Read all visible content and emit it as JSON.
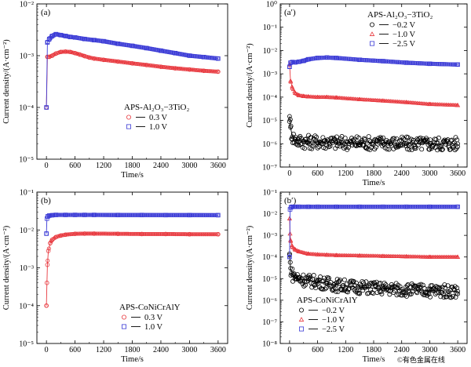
{
  "watermark": "©有色金属在线",
  "colors": {
    "red": "#e8393f",
    "blue": "#3b3bd6",
    "black": "#000000",
    "gray": "#555555"
  },
  "chart_data": [
    {
      "id": "a",
      "panel_label": "(a)",
      "type": "line",
      "xlabel": "Time/s",
      "ylabel": "Current density/(A·cm⁻²)",
      "xlim": [
        -200,
        3800
      ],
      "x_ticks": [
        0,
        600,
        1200,
        1800,
        2400,
        3000,
        3600
      ],
      "ylog": true,
      "ylim_exp": [
        -5,
        -2
      ],
      "y_tick_labels": [
        "10⁻⁵",
        "10⁻⁴",
        "10⁻³",
        "10⁻²"
      ],
      "legend_title": "APS-Al₂O₃−3TiO₂",
      "legend_pos": "center",
      "series": [
        {
          "name": "0.3 V",
          "marker": "circle",
          "color": "#e8393f",
          "x": [
            0,
            20,
            60,
            120,
            200,
            300,
            400,
            500,
            600,
            700,
            800,
            900,
            1000,
            1200,
            1500,
            1800,
            2100,
            2400,
            2700,
            3000,
            3300,
            3600
          ],
          "y": [
            0.0001,
            0.00095,
            0.00095,
            0.001,
            0.0011,
            0.00118,
            0.0012,
            0.00118,
            0.00112,
            0.00105,
            0.00098,
            0.00092,
            0.00088,
            0.00083,
            0.00077,
            0.00071,
            0.00066,
            0.00061,
            0.00057,
            0.00054,
            0.00051,
            0.00049
          ]
        },
        {
          "name": "1.0 V",
          "marker": "square",
          "color": "#3b3bd6",
          "x": [
            0,
            20,
            60,
            120,
            200,
            300,
            400,
            500,
            600,
            800,
            1000,
            1200,
            1500,
            1800,
            2100,
            2400,
            2700,
            3000,
            3300,
            3600
          ],
          "y": [
            0.0001,
            0.0018,
            0.0021,
            0.0024,
            0.0026,
            0.0025,
            0.0024,
            0.0023,
            0.00225,
            0.0021,
            0.002,
            0.0019,
            0.0017,
            0.00155,
            0.0014,
            0.00125,
            0.00112,
            0.001,
            0.00094,
            0.00088
          ]
        }
      ]
    },
    {
      "id": "a2",
      "panel_label": "(a′)",
      "type": "line",
      "xlabel": "Time/s",
      "ylabel": "Current density/(A·cm⁻²)",
      "xlim": [
        -200,
        3800
      ],
      "x_ticks": [
        0,
        600,
        1200,
        1800,
        2400,
        3000,
        3600
      ],
      "ylog": true,
      "ylim_exp": [
        -7,
        0
      ],
      "y_tick_labels": [
        "10⁻⁷",
        "10⁻⁶",
        "10⁻⁵",
        "10⁻⁴",
        "10⁻³",
        "10⁻²",
        "10⁻¹",
        "10⁰"
      ],
      "legend_title": "APS-Al₂O₃−3TiO₂",
      "legend_pos": "top-right",
      "series": [
        {
          "name": "−0.2 V",
          "marker": "circle",
          "color": "#000000",
          "noisy": true,
          "spread": [
            4e-07,
            3e-06
          ],
          "x": [
            0,
            20,
            60,
            120,
            200,
            400,
            600,
            800,
            1000,
            1500,
            2000,
            2500,
            3000,
            3600
          ],
          "y": [
            1.5e-05,
            5e-06,
            2e-06,
            1.5e-06,
            1.3e-06,
            1.2e-06,
            1.2e-06,
            1.2e-06,
            1.1e-06,
            1.1e-06,
            1.1e-06,
            1e-06,
            1e-06,
            1e-06
          ]
        },
        {
          "name": "−1.0 V",
          "marker": "triangle",
          "color": "#e8393f",
          "x": [
            0,
            20,
            60,
            120,
            200,
            300,
            400,
            600,
            800,
            1000,
            1500,
            2000,
            2500,
            3000,
            3600
          ],
          "y": [
            0.0025,
            0.0005,
            0.00025,
            0.00015,
            0.00012,
            0.00011,
            0.000105,
            0.0001,
            0.0001,
            9.5e-05,
            8e-05,
            7e-05,
            6e-05,
            5e-05,
            4.5e-05
          ]
        },
        {
          "name": "−2.5 V",
          "marker": "square",
          "color": "#3b3bd6",
          "x": [
            0,
            20,
            60,
            120,
            200,
            300,
            400,
            600,
            800,
            1000,
            1500,
            2000,
            2500,
            3000,
            3600
          ],
          "y": [
            0.002,
            0.003,
            0.0032,
            0.0031,
            0.0033,
            0.0036,
            0.0042,
            0.0048,
            0.005,
            0.0048,
            0.004,
            0.0035,
            0.003,
            0.0027,
            0.0025
          ]
        }
      ]
    },
    {
      "id": "b",
      "panel_label": "(b)",
      "type": "line",
      "xlabel": "Time/s",
      "ylabel": "Current density/(A·cm⁻²)",
      "xlim": [
        -200,
        3800
      ],
      "x_ticks": [
        0,
        600,
        1200,
        1800,
        2400,
        3000,
        3600
      ],
      "ylog": true,
      "ylim_exp": [
        -5,
        -1
      ],
      "y_tick_labels": [
        "10⁻⁵",
        "10⁻⁴",
        "10⁻³",
        "10⁻²",
        "10⁻¹"
      ],
      "legend_title": "APS-CoNiCrAlY",
      "legend_pos": "bottom-center",
      "series": [
        {
          "name": "0.3 V",
          "marker": "circle",
          "color": "#e8393f",
          "x": [
            0,
            10,
            20,
            40,
            80,
            120,
            200,
            300,
            400,
            600,
            800,
            1000,
            1500,
            2000,
            2500,
            3000,
            3600
          ],
          "y": [
            0.0001,
            0.0004,
            0.0012,
            0.0028,
            0.0045,
            0.0055,
            0.0065,
            0.0071,
            0.0075,
            0.0079,
            0.008,
            0.008,
            0.0079,
            0.0078,
            0.0078,
            0.0077,
            0.0077
          ]
        },
        {
          "name": "1.0 V",
          "marker": "square",
          "color": "#3b3bd6",
          "x": [
            0,
            10,
            30,
            60,
            120,
            200,
            400,
            600,
            800,
            1000,
            1500,
            2000,
            2500,
            3000,
            3600
          ],
          "y": [
            0.008,
            0.02,
            0.023,
            0.024,
            0.0245,
            0.025,
            0.025,
            0.025,
            0.025,
            0.025,
            0.0248,
            0.0248,
            0.0247,
            0.0247,
            0.0246
          ]
        }
      ]
    },
    {
      "id": "b2",
      "panel_label": "(b′)",
      "type": "line",
      "xlabel": "Time/s",
      "ylabel": "Current density/(A·cm⁻²)",
      "xlim": [
        -200,
        3800
      ],
      "x_ticks": [
        0,
        600,
        1200,
        1800,
        2400,
        3000,
        3600
      ],
      "ylog": true,
      "ylim_exp": [
        -8,
        -1
      ],
      "y_tick_labels": [
        "10⁻⁸",
        "10⁻⁷",
        "10⁻⁶",
        "10⁻⁵",
        "10⁻⁴",
        "10⁻³",
        "10⁻²",
        "10⁻¹"
      ],
      "legend_title": "APS-CoNiCrAlY",
      "legend_pos": "bottom-left",
      "series": [
        {
          "name": "−0.2 V",
          "marker": "circle",
          "color": "#000000",
          "noisy": true,
          "spread": [
            1e-06,
            5e-06
          ],
          "x": [
            0,
            20,
            60,
            120,
            200,
            400,
            600,
            800,
            1000,
            1500,
            2000,
            2500,
            3000,
            3600
          ],
          "y": [
            0.00012,
            3e-05,
            1.5e-05,
            1.2e-05,
            1e-05,
            8e-06,
            7e-06,
            6e-06,
            5e-06,
            4e-06,
            3.5e-06,
            3e-06,
            2.8e-06,
            2.6e-06
          ]
        },
        {
          "name": "−1.0 V",
          "marker": "triangle",
          "color": "#e8393f",
          "x": [
            0,
            10,
            20,
            60,
            120,
            200,
            400,
            600,
            800,
            1000,
            1500,
            2000,
            2500,
            3000,
            3600
          ],
          "y": [
            0.006,
            0.0012,
            0.0006,
            0.0003,
            0.00022,
            0.00018,
            0.00014,
            0.00013,
            0.000125,
            0.00012,
            0.000115,
            0.00011,
            0.000105,
            0.0001,
            0.0001
          ]
        },
        {
          "name": "−2.5 V",
          "marker": "square",
          "color": "#3b3bd6",
          "x": [
            0,
            10,
            30,
            60,
            120,
            200,
            400,
            600,
            1000,
            1500,
            2000,
            2500,
            3000,
            3600
          ],
          "y": [
            0.0001,
            0.016,
            0.02,
            0.021,
            0.021,
            0.021,
            0.021,
            0.021,
            0.021,
            0.021,
            0.021,
            0.021,
            0.021,
            0.021
          ]
        }
      ]
    }
  ]
}
